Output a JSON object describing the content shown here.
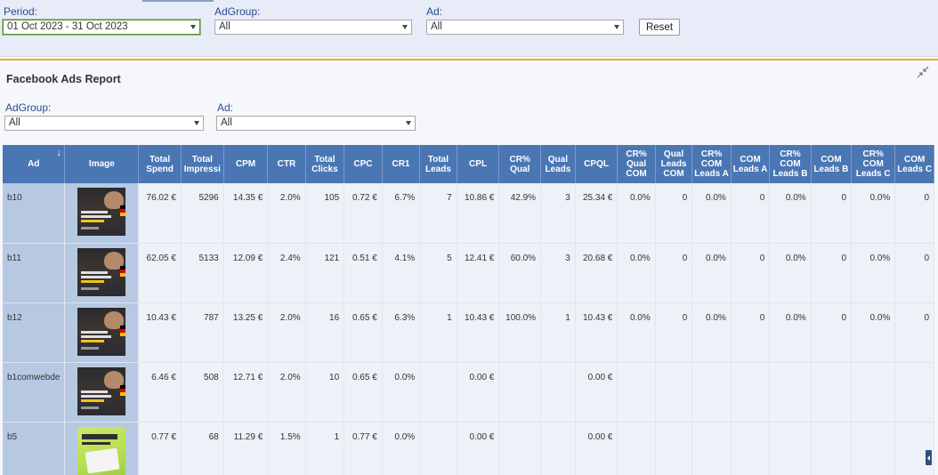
{
  "filters": {
    "period_label": "Period:",
    "period_value": "01 Oct 2023 - 31 Oct 2023",
    "adgroup_label": "AdGroup:",
    "adgroup_value": "All",
    "ad_label": "Ad:",
    "ad_value": "All",
    "reset_label": "Reset"
  },
  "report": {
    "title": "Facebook Ads Report",
    "adgroup_label": "AdGroup:",
    "adgroup_value": "All",
    "ad_label": "Ad:",
    "ad_value": "All"
  },
  "colors": {
    "header_bg": "#4a76b4",
    "first_cols_bg": "#b7c9e2",
    "cell_bg": "#eef1f7",
    "accent_border": "#f0a830",
    "label_text": "#2b4c8c"
  },
  "table": {
    "columns": [
      {
        "label": "Ad",
        "width": 50
      },
      {
        "label": "Image",
        "width": 84
      },
      {
        "label": "Total Spend",
        "width": 48
      },
      {
        "label": "Total Impressi",
        "width": 48
      },
      {
        "label": "CPM",
        "width": 50
      },
      {
        "label": "CTR",
        "width": 43
      },
      {
        "label": "Total Clicks",
        "width": 44
      },
      {
        "label": "CPC",
        "width": 43
      },
      {
        "label": "CR1",
        "width": 43
      },
      {
        "label": "Total Leads",
        "width": 42
      },
      {
        "label": "CPL",
        "width": 48
      },
      {
        "label": "CR% Qual",
        "width": 47
      },
      {
        "label": "Qual Leads",
        "width": 39
      },
      {
        "label": "CPQL",
        "width": 48
      },
      {
        "label": "CR% Qual COM",
        "width": 43
      },
      {
        "label": "Qual Leads COM",
        "width": 42
      },
      {
        "label": "CR% COM Leads A",
        "width": 44
      },
      {
        "label": "COM Leads A",
        "width": 44
      },
      {
        "label": "CR% COM Leads B",
        "width": 47
      },
      {
        "label": "COM Leads B",
        "width": 46
      },
      {
        "label": "CR% COM Leads C",
        "width": 50
      },
      {
        "label": "COM Leads C",
        "width": 44
      }
    ],
    "rows": [
      {
        "ad": "b10",
        "thumb": "dark",
        "cells": [
          "76.02 €",
          "5296",
          "14.35 €",
          "2.0%",
          "105",
          "0.72 €",
          "6.7%",
          "7",
          "10.86 €",
          "42.9%",
          "3",
          "25.34 €",
          "0.0%",
          "0",
          "0.0%",
          "0",
          "0.0%",
          "0",
          "0.0%",
          "0"
        ]
      },
      {
        "ad": "b11",
        "thumb": "dark",
        "cells": [
          "62.05 €",
          "5133",
          "12.09 €",
          "2.4%",
          "121",
          "0.51 €",
          "4.1%",
          "5",
          "12.41 €",
          "60.0%",
          "3",
          "20.68 €",
          "0.0%",
          "0",
          "0.0%",
          "0",
          "0.0%",
          "0",
          "0.0%",
          "0"
        ]
      },
      {
        "ad": "b12",
        "thumb": "dark",
        "cells": [
          "10.43 €",
          "787",
          "13.25 €",
          "2.0%",
          "16",
          "0.65 €",
          "6.3%",
          "1",
          "10.43 €",
          "100.0%",
          "1",
          "10.43 €",
          "0.0%",
          "0",
          "0.0%",
          "0",
          "0.0%",
          "0",
          "0.0%",
          "0"
        ]
      },
      {
        "ad": "b1comwebde",
        "thumb": "dark",
        "cells": [
          "6.46 €",
          "508",
          "12.71 €",
          "2.0%",
          "10",
          "0.65 €",
          "0.0%",
          "",
          "0.00 €",
          "",
          "",
          "0.00 €",
          "",
          "",
          "",
          "",
          "",
          "",
          "",
          ""
        ]
      },
      {
        "ad": "b5",
        "thumb": "green",
        "cells": [
          "0.77 €",
          "68",
          "11.29 €",
          "1.5%",
          "1",
          "0.77 €",
          "0.0%",
          "",
          "0.00 €",
          "",
          "",
          "0.00 €",
          "",
          "",
          "",
          "",
          "",
          "",
          "",
          ""
        ]
      }
    ]
  }
}
